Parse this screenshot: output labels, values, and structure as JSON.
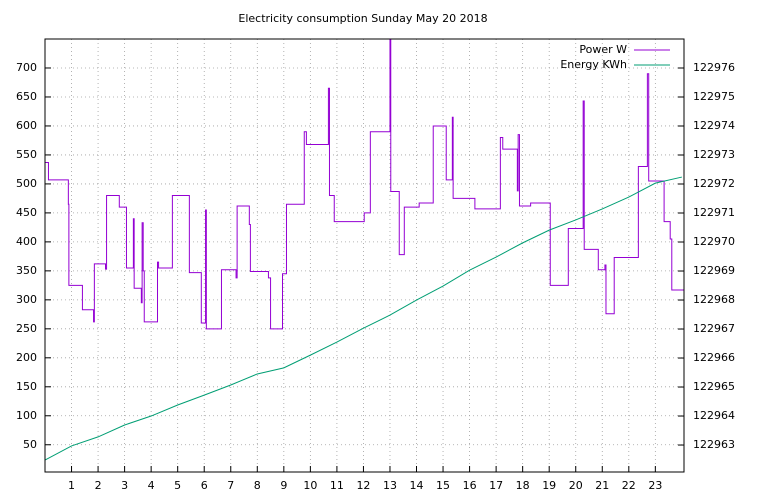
{
  "chart_data": {
    "type": "line",
    "title": "Electricity consumption Sunday May 20 2018",
    "xlim": [
      0,
      24.08
    ],
    "xticks": [
      1,
      2,
      3,
      4,
      5,
      6,
      7,
      8,
      9,
      10,
      11,
      12,
      13,
      14,
      15,
      16,
      17,
      18,
      19,
      20,
      21,
      22,
      23
    ],
    "ylim": [
      3,
      750
    ],
    "yticks": [
      50,
      100,
      150,
      200,
      250,
      300,
      350,
      400,
      450,
      500,
      550,
      600,
      650,
      700
    ],
    "y2lim": [
      122962.07,
      122977
    ],
    "y2ticks": [
      122963,
      122964,
      122965,
      122966,
      122967,
      122968,
      122969,
      122970,
      122971,
      122972,
      122973,
      122974,
      122975,
      122976
    ],
    "grid": true,
    "legend": "top-right",
    "series": [
      {
        "name": "Power W",
        "color": "#9400d3",
        "x": [
          0,
          0.13,
          0.13,
          0.88,
          0.88,
          0.9,
          0.9,
          1.41,
          1.41,
          1.83,
          1.83,
          1.86,
          1.86,
          2.28,
          2.28,
          2.32,
          2.32,
          2.8,
          2.8,
          3.07,
          3.07,
          3.33,
          3.33,
          3.36,
          3.36,
          3.63,
          3.63,
          3.66,
          3.66,
          3.7,
          3.7,
          3.74,
          3.74,
          4.24,
          4.24,
          4.28,
          4.28,
          4.8,
          4.8,
          5.44,
          5.44,
          5.89,
          5.89,
          6.05,
          6.05,
          6.08,
          6.08,
          6.65,
          6.65,
          7.2,
          7.2,
          7.24,
          7.24,
          7.7,
          7.7,
          7.74,
          7.74,
          8.42,
          8.42,
          8.5,
          8.5,
          8.95,
          8.95,
          9.1,
          9.1,
          9.77,
          9.77,
          9.85,
          9.85,
          10.68,
          10.68,
          10.72,
          10.72,
          10.9,
          10.9,
          12.03,
          12.03,
          12.26,
          12.26,
          13.0,
          13.0,
          13.03,
          13.03,
          13.35,
          13.35,
          13.54,
          13.54,
          14.1,
          14.1,
          14.63,
          14.63,
          15.12,
          15.12,
          15.35,
          15.35,
          15.38,
          15.38,
          16.2,
          16.2,
          17.16,
          17.16,
          17.25,
          17.25,
          17.8,
          17.8,
          17.83,
          17.83,
          17.88,
          17.88,
          18.3,
          18.3,
          19.04,
          19.04,
          19.72,
          19.72,
          20.28,
          20.28,
          20.32,
          20.32,
          20.85,
          20.85,
          21.1,
          21.1,
          21.14,
          21.14,
          21.45,
          21.45,
          22.36,
          22.36,
          22.7,
          22.7,
          22.75,
          22.75,
          23.33,
          23.33,
          23.56,
          23.56,
          23.62,
          23.62,
          24.08
        ],
        "values": [
          537,
          537,
          507,
          507,
          465,
          465,
          325,
          325,
          283,
          283,
          262,
          262,
          362,
          362,
          353,
          353,
          480,
          480,
          460,
          460,
          355,
          355,
          440,
          440,
          320,
          320,
          295,
          295,
          433,
          433,
          350,
          350,
          262,
          262,
          365,
          365,
          355,
          355,
          480,
          480,
          347,
          347,
          260,
          260,
          455,
          455,
          250,
          250,
          352,
          352,
          338,
          338,
          462,
          462,
          430,
          430,
          349,
          349,
          338,
          338,
          250,
          250,
          345,
          345,
          465,
          465,
          590,
          590,
          568,
          568,
          665,
          665,
          480,
          480,
          435,
          435,
          450,
          450,
          590,
          590,
          750,
          750,
          487,
          487,
          378,
          378,
          460,
          460,
          467,
          467,
          600,
          600,
          507,
          507,
          615,
          615,
          475,
          475,
          457,
          457,
          580,
          580,
          560,
          560,
          488,
          488,
          585,
          585,
          462,
          462,
          467,
          467,
          325,
          325,
          423,
          423,
          643,
          643,
          387,
          387,
          352,
          352,
          360,
          360,
          276,
          276,
          373,
          373,
          530,
          530,
          690,
          690,
          505,
          505,
          435,
          435,
          405,
          405,
          317,
          317
        ]
      },
      {
        "name": "Energy KWh",
        "color": "#009e73",
        "axis": "y2",
        "x": [
          0,
          1,
          2,
          3,
          4,
          5,
          6,
          7,
          8,
          9,
          10,
          11,
          12,
          13,
          14,
          15,
          16,
          17,
          18,
          19,
          20,
          21,
          22,
          23,
          24
        ],
        "values": [
          122962.48,
          122962.97,
          122963.28,
          122963.69,
          122964.0,
          122964.38,
          122964.72,
          122965.07,
          122965.45,
          122965.66,
          122966.1,
          122966.55,
          122967.03,
          122967.48,
          122968.0,
          122968.48,
          122969.03,
          122969.48,
          122969.97,
          122970.41,
          122970.76,
          122971.14,
          122971.55,
          122972.03,
          122972.24
        ]
      }
    ]
  }
}
